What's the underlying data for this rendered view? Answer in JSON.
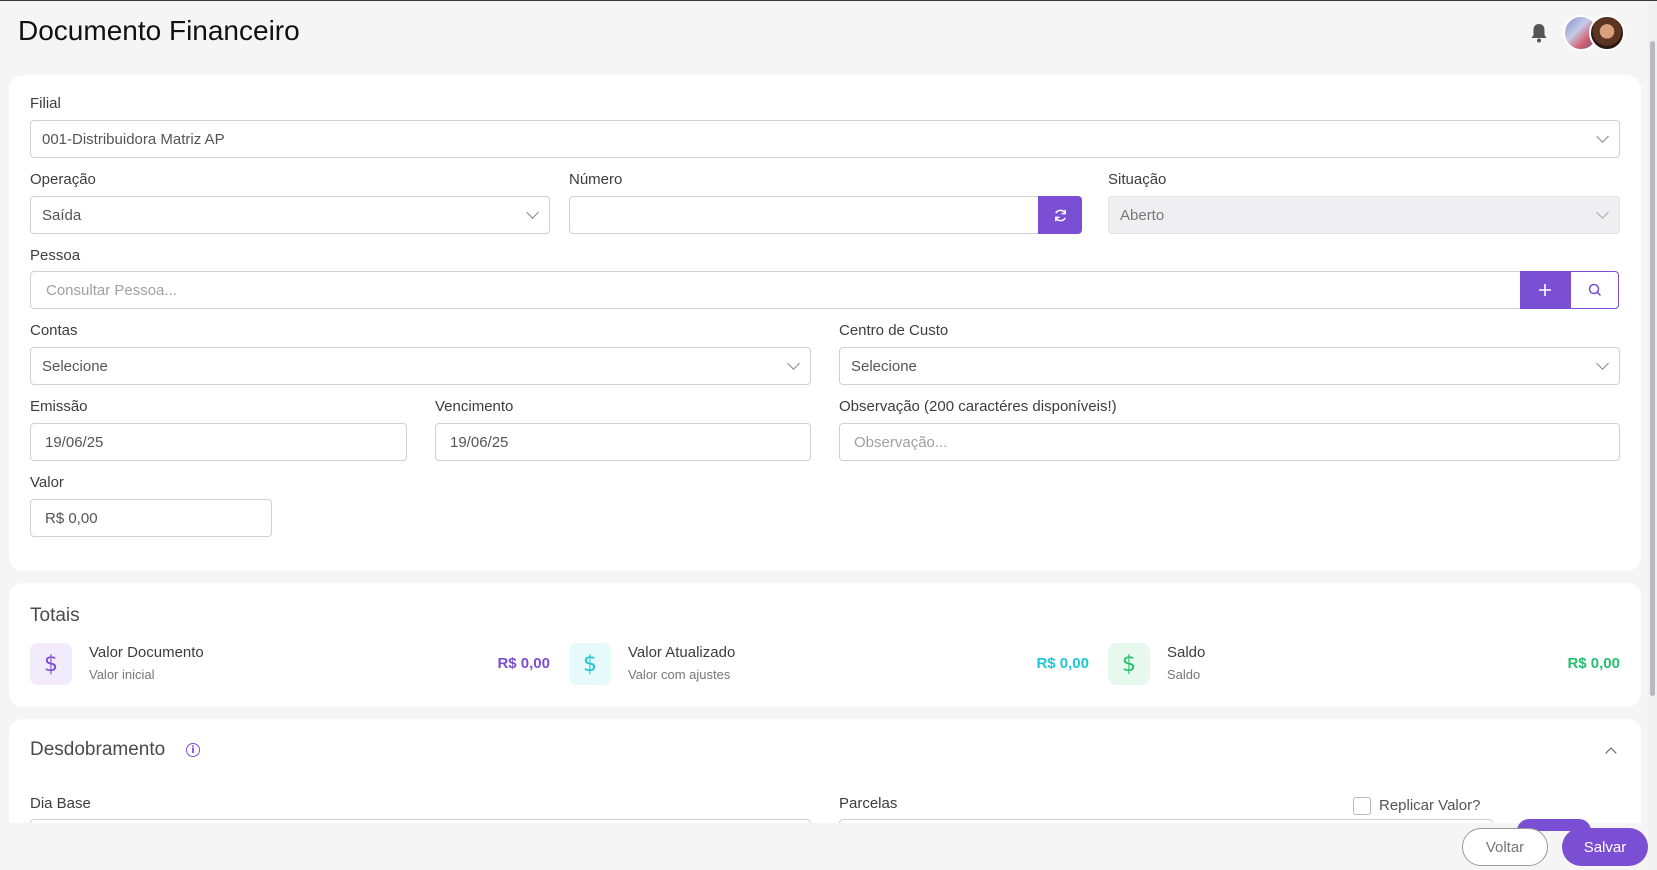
{
  "header": {
    "title": "Documento Financeiro",
    "bell_icon": "bell-icon",
    "avatars": [
      "flag-avatar",
      "user-avatar"
    ]
  },
  "form": {
    "filial": {
      "label": "Filial",
      "value": "001-Distribuidora Matriz AP"
    },
    "operacao": {
      "label": "Operação",
      "value": "Saída"
    },
    "numero": {
      "label": "Número",
      "value": ""
    },
    "situacao": {
      "label": "Situação",
      "value": "Aberto"
    },
    "pessoa": {
      "label": "Pessoa",
      "placeholder": "Consultar Pessoa..."
    },
    "contas": {
      "label": "Contas",
      "value": "Selecione"
    },
    "centro_custo": {
      "label": "Centro de Custo",
      "value": "Selecione"
    },
    "emissao": {
      "label": "Emissão",
      "value": "19/06/25"
    },
    "vencimento": {
      "label": "Vencimento",
      "value": "19/06/25"
    },
    "observacao": {
      "label": "Observação (200 caractéres disponíveis!)",
      "placeholder": "Observação..."
    },
    "valor": {
      "label": "Valor",
      "value": "R$ 0,00"
    }
  },
  "totais": {
    "title": "Totais",
    "items": [
      {
        "name": "Valor Documento",
        "sub": "Valor inicial",
        "value": "R$ 0,00",
        "color": "#7b4fd3",
        "bg": "#f1ebfb"
      },
      {
        "name": "Valor Atualizado",
        "sub": "Valor com ajustes",
        "value": "R$ 0,00",
        "color": "#1fc6d6",
        "bg": "#e6f9fb"
      },
      {
        "name": "Saldo",
        "sub": "Saldo",
        "value": "R$ 0,00",
        "color": "#25c06d",
        "bg": "#e7f8ee"
      }
    ]
  },
  "desdobramento": {
    "title": "Desdobramento",
    "dia_base_label": "Dia Base",
    "parcelas_label": "Parcelas",
    "replicar_label": "Replicar Valor?"
  },
  "footer": {
    "voltar": "Voltar",
    "salvar": "Salvar"
  }
}
